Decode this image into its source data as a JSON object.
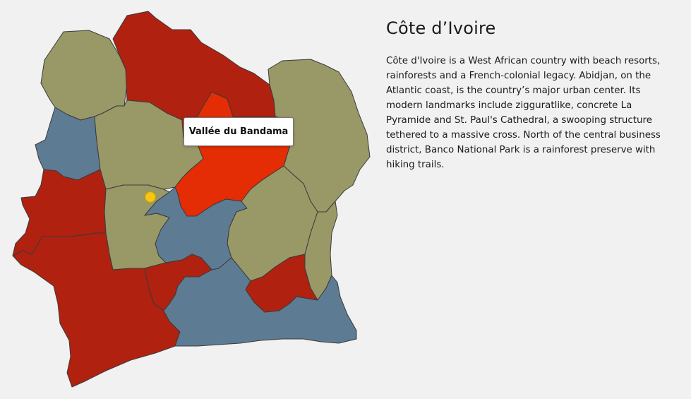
{
  "country": {
    "title": "Côte d’Ivoire",
    "description": "Côte d'Ivoire is a West African country with beach resorts, rainforests and a French-colonial legacy. Abidjan, on the Atlantic coast, is the country’s major urban center. Its modern landmarks include zigguratlike, concrete La Pyramide and St. Paul's Cathedral, a swooping structure tethered to a massive cross. North of the central business district, Banco National Park is a rainforest preserve with hiking trails."
  },
  "tooltip": {
    "label": "Vallée du Bandama"
  },
  "map": {
    "colors": {
      "red": "#b02110",
      "olive": "#999867",
      "blue": "#5d7b93",
      "highlight": "#e42c05",
      "marker": "#f5c518",
      "stroke": "#3b3b3b"
    }
  }
}
